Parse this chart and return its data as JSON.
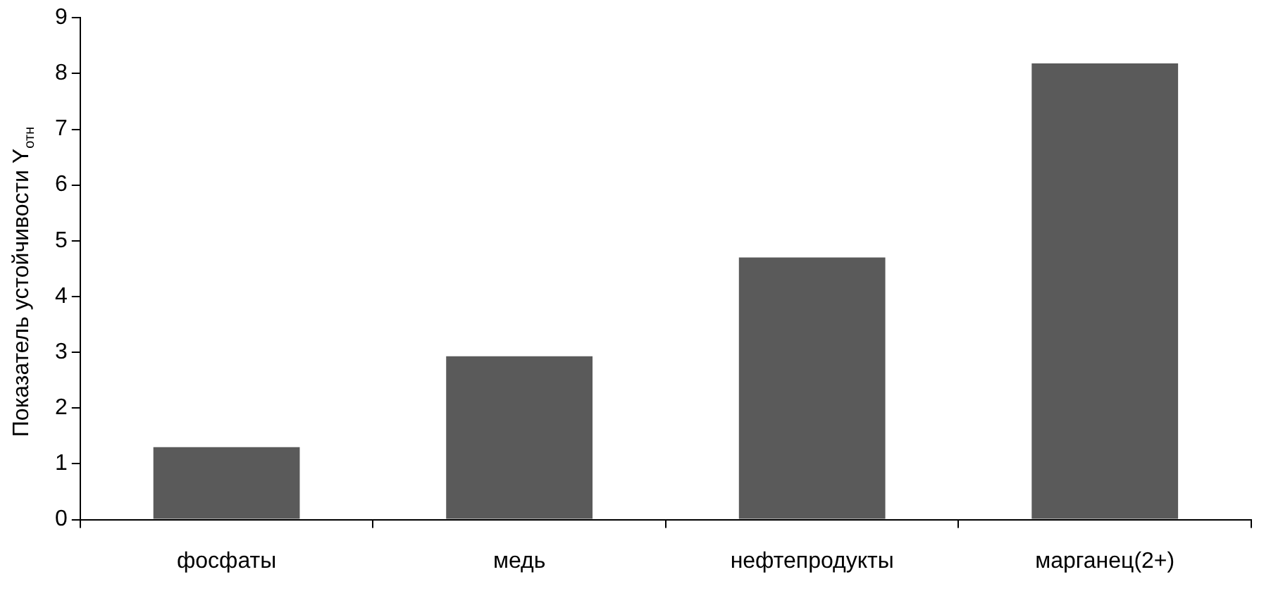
{
  "chart_data": {
    "type": "bar",
    "ylabel": "Показатель устойчивости Y$_{отн}$",
    "categories": [
      "фосфаты",
      "медь",
      "нефтепродукты",
      "марганец(2+)"
    ],
    "values": [
      1.3,
      2.93,
      4.7,
      8.18
    ],
    "color": "#5a5a5a",
    "ylim": [
      0,
      9
    ],
    "yticks": [
      0,
      1,
      2,
      3,
      4,
      5,
      6,
      7,
      8,
      9
    ],
    "grid": false,
    "legend": false
  }
}
